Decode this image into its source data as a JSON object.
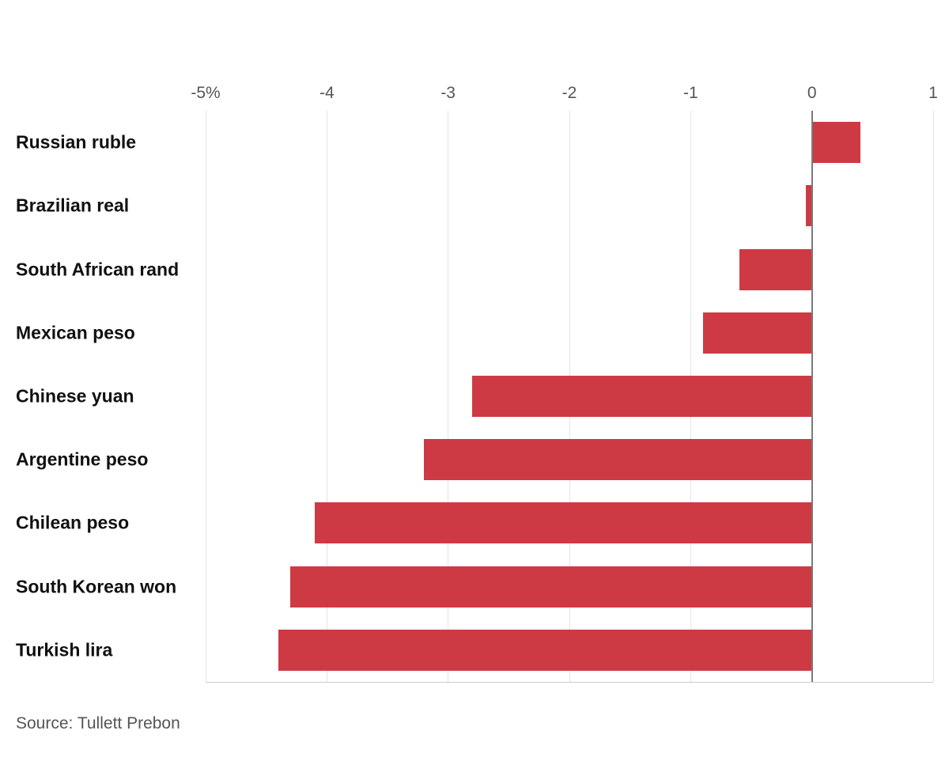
{
  "chart_data": {
    "type": "bar",
    "orientation": "horizontal",
    "title": "",
    "xlabel": "",
    "ylabel": "",
    "categories": [
      "Russian ruble",
      "Brazilian real",
      "South African rand",
      "Mexican peso",
      "Chinese yuan",
      "Argentine peso",
      "Chilean peso",
      "South Korean won",
      "Turkish lira"
    ],
    "values": [
      0.4,
      -0.05,
      -0.6,
      -0.9,
      -2.8,
      -3.2,
      -4.1,
      -4.3,
      -4.4
    ],
    "unit": "%",
    "xlim": [
      -5,
      1
    ],
    "x_ticks": [
      -5,
      -4,
      -3,
      -2,
      -1,
      0,
      1
    ],
    "x_tick_labels": [
      "-5%",
      "-4",
      "-3",
      "-2",
      "-1",
      "0",
      "1"
    ],
    "grid": true,
    "legend": "none",
    "bar_color": "#ce3a44"
  },
  "colors": {
    "bar": "#ce3a44",
    "grid": "#e4e4e4",
    "zero_line": "#7a7a7a",
    "category_label": "#111111",
    "tick_label": "#555555",
    "source_text": "#555555"
  },
  "source_note": "Source: Tullett Prebon"
}
